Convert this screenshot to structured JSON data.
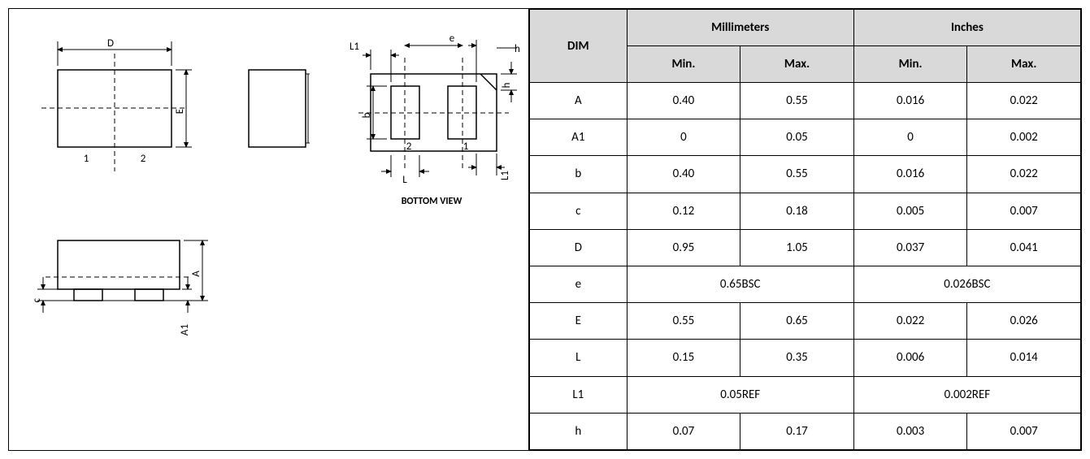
{
  "table": {
    "header": {
      "dim": "DIM",
      "mm": "Millimeters",
      "in": "Inches",
      "min": "Min.",
      "max": "Max."
    },
    "rows": [
      {
        "dim": "A",
        "mm_min": "0.40",
        "mm_max": "0.55",
        "in_min": "0.016",
        "in_max": "0.022"
      },
      {
        "dim": "A1",
        "mm_min": "0",
        "mm_max": "0.05",
        "in_min": "0",
        "in_max": "0.002"
      },
      {
        "dim": "b",
        "mm_min": "0.40",
        "mm_max": "0.55",
        "in_min": "0.016",
        "in_max": "0.022"
      },
      {
        "dim": "c",
        "mm_min": "0.12",
        "mm_max": "0.18",
        "in_min": "0.005",
        "in_max": "0.007"
      },
      {
        "dim": "D",
        "mm_min": "0.95",
        "mm_max": "1.05",
        "in_min": "0.037",
        "in_max": "0.041"
      },
      {
        "dim": "e",
        "mm_span": "0.65BSC",
        "in_span": "0.026BSC"
      },
      {
        "dim": "E",
        "mm_min": "0.55",
        "mm_max": "0.65",
        "in_min": "0.022",
        "in_max": "0.026"
      },
      {
        "dim": "L",
        "mm_min": "0.15",
        "mm_max": "0.35",
        "in_min": "0.006",
        "in_max": "0.014"
      },
      {
        "dim": "L1",
        "mm_span": "0.05REF",
        "in_span": "0.002REF"
      },
      {
        "dim": "h",
        "mm_min": "0.07",
        "mm_max": "0.17",
        "in_min": "0.003",
        "in_max": "0.007"
      }
    ]
  },
  "diagram": {
    "caption_bottom": "BOTTOM VIEW",
    "labels": {
      "D": "D",
      "E": "E",
      "L1": "L1",
      "e": "e",
      "h": "h",
      "b": "b",
      "L": "L",
      "A": "A",
      "A1": "A1",
      "c": "c",
      "pin1": "1",
      "pin2": "2"
    },
    "style": {
      "stroke": "#000000",
      "stroke_width": 1.5,
      "dash": "6,4",
      "bg": "#ffffff"
    }
  }
}
